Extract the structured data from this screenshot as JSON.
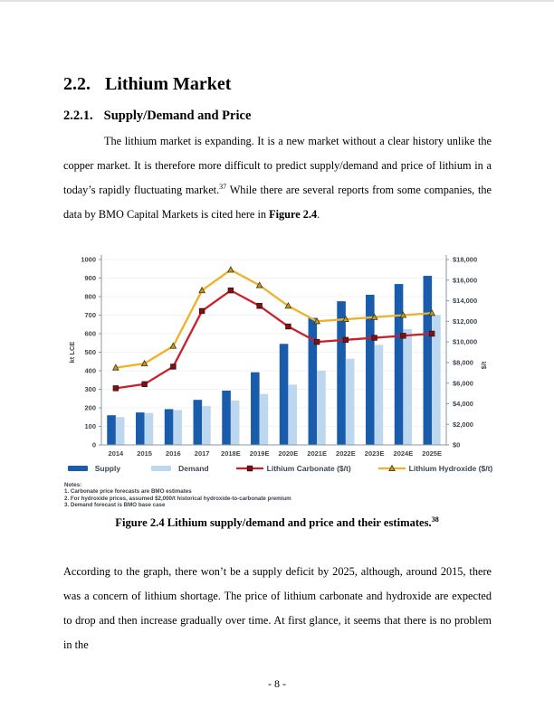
{
  "document": {
    "section_number": "2.2.",
    "section_name": "Lithium Market",
    "subsection_number": "2.2.1.",
    "subsection_name": "Supply/Demand and Price",
    "paragraph1": {
      "part1": "The lithium market is expanding. It is a new market without a clear history unlike the copper market. It is therefore more difficult to predict supply/demand and price of lithium in a today’s rapidly fluctuating market.",
      "footnote1": "37",
      "part2": " While there are several reports from some companies, the data by BMO Capital Markets is cited here in ",
      "figure_ref": "Figure 2.4",
      "part3": "."
    },
    "figure_caption": {
      "text": "Figure 2.4 Lithium supply/demand and price and their estimates.",
      "footnote": "38"
    },
    "paragraph2": "According to the graph, there won’t be a supply deficit by 2025, although, around 2015, there was a concern of lithium shortage. The price of lithium carbonate and hydroxide are expected to drop and then increase gradually over time. At first glance, it seems that there is no problem in the",
    "page_number": "- 8 -"
  },
  "chart_data": {
    "type": "bar",
    "subtype": "combo bar+line, dual axis",
    "title": "",
    "categories": [
      "2014",
      "2015",
      "2016",
      "2017",
      "2018E",
      "2019E",
      "2020E",
      "2021E",
      "2022E",
      "2023E",
      "2024E",
      "2025E"
    ],
    "series": [
      {
        "name": "Supply",
        "kind": "bar",
        "axis": "left",
        "color": "#1a5cac",
        "values": [
          160,
          175,
          193,
          243,
          293,
          392,
          545,
          685,
          775,
          810,
          868,
          912
        ]
      },
      {
        "name": "Demand",
        "kind": "bar",
        "axis": "left",
        "color": "#bdd7ee",
        "values": [
          150,
          172,
          188,
          210,
          240,
          275,
          325,
          400,
          465,
          540,
          625,
          700
        ]
      },
      {
        "name": "Lithium Carbonate ($/t)",
        "kind": "line",
        "axis": "right",
        "color": "#cc1f2a",
        "marker": "square",
        "marker_fill": "#7a1216",
        "marker_stroke": "#430b0d",
        "values": [
          5500,
          5900,
          7600,
          13000,
          15000,
          13500,
          11500,
          10000,
          10200,
          10400,
          10600,
          10800
        ]
      },
      {
        "name": "Lithium Hydroxide ($/t)",
        "kind": "line",
        "axis": "right",
        "color": "#f0b02a",
        "marker": "triangle",
        "marker_fill": "#bf9b26",
        "marker_stroke": "#3e3512",
        "values": [
          7500,
          7900,
          9600,
          15000,
          17000,
          15500,
          13500,
          12000,
          12200,
          12400,
          12600,
          12800
        ]
      }
    ],
    "left_axis": {
      "label": "kt LCE",
      "min": 0,
      "max": 1000,
      "step": 100
    },
    "right_axis": {
      "label": "$/t",
      "min": 0,
      "max": 18000,
      "step": 2000,
      "prefix": "$"
    },
    "legend_position": "bottom",
    "grid": "horizontal, faint",
    "notes": [
      "Notes:",
      "1. Carbonate price forecasts are BMO estimates",
      "2. For hydroxide prices, assumed $2,000/t historical hydroxide-to-carbonate premium",
      "3. Demand forecast is BMO base case"
    ]
  }
}
